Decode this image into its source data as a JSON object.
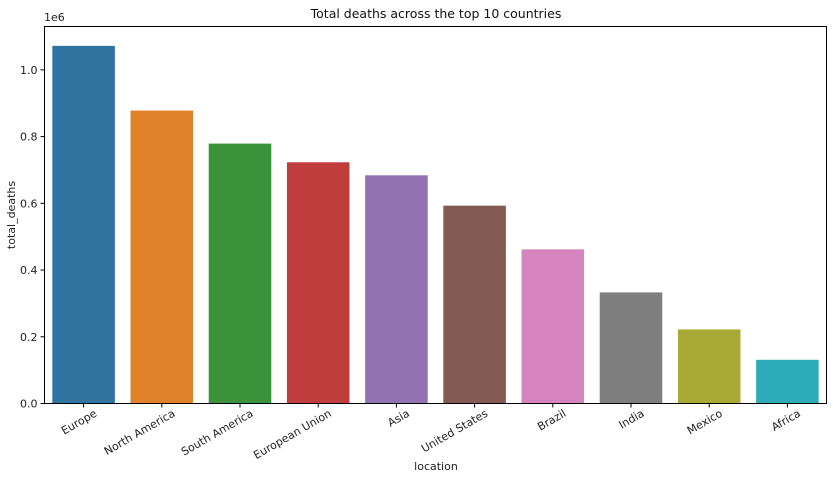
{
  "chart_data": {
    "type": "bar",
    "title": "Total deaths across the top 10 countries",
    "xlabel": "location",
    "ylabel": "total_deaths",
    "y_offset_label": "1e6",
    "ylim": [
      0,
      1.13
    ],
    "yticks": [
      "0.0",
      "0.2",
      "0.4",
      "0.6",
      "0.8",
      "1.0"
    ],
    "yticks_values": [
      0,
      0.2,
      0.4,
      0.6,
      0.8,
      1.0
    ],
    "categories": [
      "Europe",
      "North America",
      "South America",
      "European Union",
      "Asia",
      "United States",
      "Brazil",
      "India",
      "Mexico",
      "Africa"
    ],
    "values": [
      1.072,
      0.878,
      0.779,
      0.723,
      0.684,
      0.593,
      0.462,
      0.333,
      0.222,
      0.131
    ],
    "colors": [
      "#3274a1",
      "#e1812c",
      "#3a923a",
      "#c03d3e",
      "#9372b2",
      "#845b53",
      "#d684bd",
      "#7f7f7f",
      "#a9aa35",
      "#2eabb8"
    ],
    "grid": false,
    "legend": "none"
  }
}
